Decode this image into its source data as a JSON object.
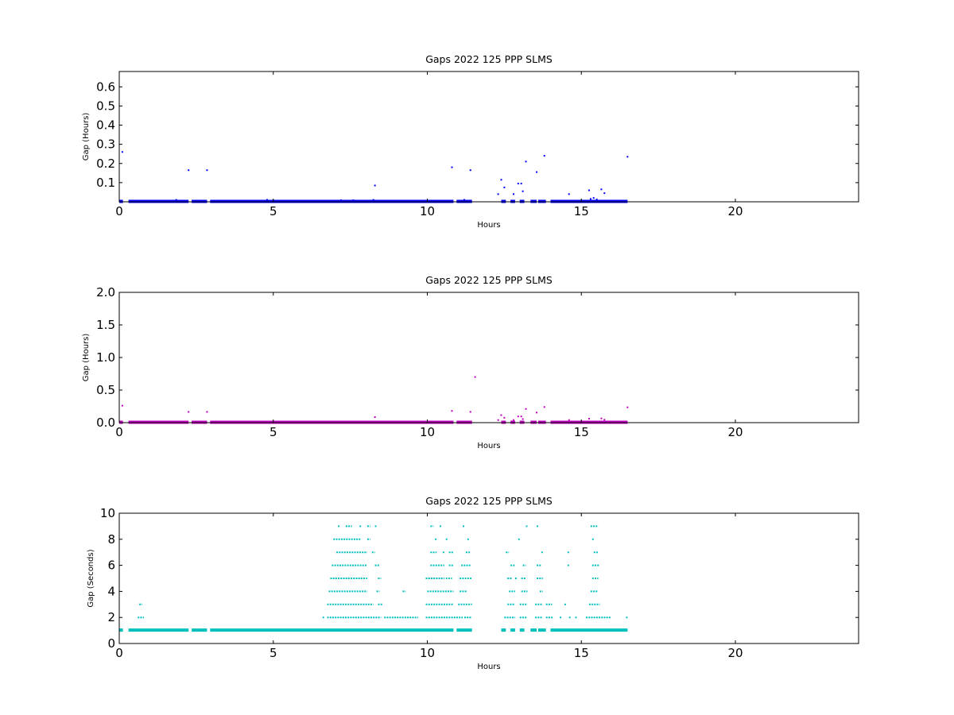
{
  "chart_data": [
    {
      "type": "scatter",
      "title": "Gaps 2022 125 PPP  SLMS",
      "xlabel": "Hours",
      "ylabel": "Gap (Hours)",
      "xlim": [
        0,
        24
      ],
      "ylim": [
        0,
        0.68
      ],
      "xticks": [
        0,
        5,
        10,
        15,
        20
      ],
      "yticks": [
        0.1,
        0.2,
        0.3,
        0.4,
        0.5,
        0.6
      ],
      "ytick_labels": [
        "0.1",
        "0.2",
        "0.3",
        "0.4",
        "0.5",
        "0.6"
      ],
      "color": "#0000ff",
      "baseline_segments": [
        [
          0.0,
          0.12,
          0.0
        ],
        [
          0.3,
          2.25,
          0.0
        ],
        [
          2.35,
          2.85,
          0.0
        ],
        [
          2.95,
          10.85,
          0.0
        ],
        [
          10.95,
          11.45,
          0.0
        ],
        [
          12.4,
          12.55,
          0.0
        ],
        [
          12.7,
          12.85,
          0.0
        ],
        [
          13.0,
          13.15,
          0.0
        ],
        [
          13.35,
          13.55,
          0.0
        ],
        [
          13.6,
          13.85,
          0.0
        ],
        [
          14.0,
          16.5,
          0.0
        ]
      ],
      "points": [
        [
          0.1,
          0.26
        ],
        [
          2.25,
          0.165
        ],
        [
          2.85,
          0.165
        ],
        [
          8.3,
          0.085
        ],
        [
          8.25,
          0.01
        ],
        [
          10.8,
          0.18
        ],
        [
          11.4,
          0.165
        ],
        [
          12.3,
          0.04
        ],
        [
          12.4,
          0.115
        ],
        [
          12.5,
          0.075
        ],
        [
          12.8,
          0.04
        ],
        [
          12.95,
          0.095
        ],
        [
          13.05,
          0.095
        ],
        [
          13.1,
          0.055
        ],
        [
          13.2,
          0.21
        ],
        [
          13.55,
          0.155
        ],
        [
          13.8,
          0.24
        ],
        [
          14.6,
          0.04
        ],
        [
          15.25,
          0.06
        ],
        [
          15.4,
          0.02
        ],
        [
          15.65,
          0.065
        ],
        [
          15.75,
          0.045
        ],
        [
          16.5,
          0.235
        ],
        [
          1.85,
          0.01
        ],
        [
          4.8,
          0.01
        ],
        [
          7.2,
          0.008
        ],
        [
          7.6,
          0.008
        ],
        [
          11.2,
          0.01
        ],
        [
          15.3,
          0.015
        ],
        [
          15.5,
          0.012
        ]
      ]
    },
    {
      "type": "scatter",
      "title": "Gaps 2022 125 PPP  SLMS",
      "xlabel": "Hours",
      "ylabel": "Gap (Hours)",
      "xlim": [
        0,
        24
      ],
      "ylim": [
        0,
        2.0
      ],
      "xticks": [
        0,
        5,
        10,
        15,
        20
      ],
      "yticks": [
        0.0,
        0.5,
        1.0,
        1.5,
        2.0
      ],
      "ytick_labels": [
        "0.0",
        "0.5",
        "1.0",
        "1.5",
        "2.0"
      ],
      "color": "#bf00bf",
      "baseline_segments": [
        [
          0.0,
          0.12,
          0.0
        ],
        [
          0.3,
          2.25,
          0.0
        ],
        [
          2.35,
          2.85,
          0.0
        ],
        [
          2.95,
          10.85,
          0.0
        ],
        [
          10.95,
          11.45,
          0.0
        ],
        [
          12.4,
          12.55,
          0.0
        ],
        [
          12.7,
          12.85,
          0.0
        ],
        [
          13.0,
          13.15,
          0.0
        ],
        [
          13.35,
          13.55,
          0.0
        ],
        [
          13.6,
          13.85,
          0.0
        ],
        [
          14.0,
          16.5,
          0.0
        ]
      ],
      "points": [
        [
          0.1,
          0.26
        ],
        [
          2.25,
          0.165
        ],
        [
          2.85,
          0.165
        ],
        [
          8.3,
          0.085
        ],
        [
          10.8,
          0.18
        ],
        [
          11.4,
          0.165
        ],
        [
          11.55,
          0.7
        ],
        [
          12.3,
          0.04
        ],
        [
          12.4,
          0.115
        ],
        [
          12.5,
          0.075
        ],
        [
          12.8,
          0.04
        ],
        [
          12.95,
          0.095
        ],
        [
          13.05,
          0.095
        ],
        [
          13.1,
          0.055
        ],
        [
          13.2,
          0.21
        ],
        [
          13.55,
          0.155
        ],
        [
          13.8,
          0.24
        ],
        [
          14.6,
          0.04
        ],
        [
          15.25,
          0.06
        ],
        [
          15.65,
          0.065
        ],
        [
          15.75,
          0.045
        ],
        [
          16.5,
          0.235
        ]
      ]
    },
    {
      "type": "scatter",
      "title": "Gaps 2022 125 PPP  SLMS",
      "xlabel": "Hours",
      "ylabel": "Gap (Seconds)",
      "xlim": [
        0,
        24
      ],
      "ylim": [
        0,
        10
      ],
      "xticks": [
        0,
        5,
        10,
        15,
        20
      ],
      "yticks": [
        0,
        2,
        4,
        6,
        8,
        10
      ],
      "ytick_labels": [
        "0",
        "2",
        "4",
        "6",
        "8",
        "10"
      ],
      "color": "#00bfbf",
      "baseline_segments": [
        [
          0.0,
          0.12,
          1
        ],
        [
          0.3,
          2.25,
          1
        ],
        [
          2.35,
          2.85,
          1
        ],
        [
          2.95,
          10.85,
          1
        ],
        [
          10.95,
          11.45,
          1
        ],
        [
          12.4,
          12.55,
          1
        ],
        [
          12.7,
          12.85,
          1
        ],
        [
          13.0,
          13.15,
          1
        ],
        [
          13.35,
          13.55,
          1
        ],
        [
          13.6,
          13.85,
          1
        ],
        [
          14.0,
          16.5,
          1
        ]
      ],
      "level_segments": [
        [
          0.65,
          0.75,
          3
        ],
        [
          0.6,
          0.8,
          2
        ],
        [
          6.6,
          6.65,
          2
        ],
        [
          6.75,
          8.5,
          2
        ],
        [
          8.6,
          9.7,
          2
        ],
        [
          9.95,
          11.15,
          2
        ],
        [
          11.2,
          11.45,
          2
        ],
        [
          12.5,
          12.85,
          2
        ],
        [
          13.0,
          13.25,
          2
        ],
        [
          13.5,
          13.75,
          2
        ],
        [
          13.85,
          14.1,
          2
        ],
        [
          14.3,
          14.35,
          2
        ],
        [
          14.6,
          14.65,
          2
        ],
        [
          14.8,
          14.85,
          2
        ],
        [
          15.15,
          15.95,
          2
        ],
        [
          16.45,
          16.5,
          2
        ],
        [
          6.75,
          8.25,
          3
        ],
        [
          8.4,
          8.55,
          3
        ],
        [
          9.95,
          10.85,
          3
        ],
        [
          11.0,
          11.45,
          3
        ],
        [
          12.6,
          12.85,
          3
        ],
        [
          13.0,
          13.25,
          3
        ],
        [
          13.5,
          13.75,
          3
        ],
        [
          13.85,
          14.05,
          3
        ],
        [
          14.45,
          14.5,
          3
        ],
        [
          15.25,
          15.6,
          3
        ],
        [
          6.8,
          8.05,
          4
        ],
        [
          8.35,
          8.45,
          4
        ],
        [
          9.2,
          9.3,
          4
        ],
        [
          10.0,
          10.85,
          4
        ],
        [
          11.05,
          11.3,
          4
        ],
        [
          12.65,
          12.85,
          4
        ],
        [
          13.05,
          13.25,
          4
        ],
        [
          13.65,
          13.75,
          4
        ],
        [
          15.3,
          15.55,
          4
        ],
        [
          6.85,
          8.05,
          5
        ],
        [
          8.4,
          8.5,
          5
        ],
        [
          9.95,
          10.55,
          5
        ],
        [
          10.6,
          10.8,
          5
        ],
        [
          11.05,
          11.45,
          5
        ],
        [
          12.6,
          12.75,
          5
        ],
        [
          12.85,
          12.9,
          5
        ],
        [
          13.05,
          13.2,
          5
        ],
        [
          13.55,
          13.75,
          5
        ],
        [
          15.35,
          15.55,
          5
        ],
        [
          6.9,
          8.05,
          6
        ],
        [
          8.3,
          8.45,
          6
        ],
        [
          10.1,
          10.55,
          6
        ],
        [
          10.7,
          10.85,
          6
        ],
        [
          11.1,
          11.4,
          6
        ],
        [
          12.7,
          12.85,
          6
        ],
        [
          13.1,
          13.2,
          6
        ],
        [
          13.55,
          13.7,
          6
        ],
        [
          14.55,
          14.6,
          6
        ],
        [
          15.35,
          15.6,
          6
        ],
        [
          7.05,
          8.05,
          7
        ],
        [
          8.2,
          8.3,
          7
        ],
        [
          10.1,
          10.3,
          7
        ],
        [
          10.5,
          10.55,
          7
        ],
        [
          10.7,
          10.85,
          7
        ],
        [
          11.25,
          11.4,
          7
        ],
        [
          12.55,
          12.65,
          7
        ],
        [
          13.7,
          13.75,
          7
        ],
        [
          14.55,
          14.6,
          7
        ],
        [
          15.4,
          15.55,
          7
        ],
        [
          6.95,
          7.85,
          8
        ],
        [
          8.05,
          8.15,
          8
        ],
        [
          10.25,
          10.3,
          8
        ],
        [
          10.6,
          10.65,
          8
        ],
        [
          11.3,
          11.35,
          8
        ],
        [
          12.95,
          13.0,
          8
        ],
        [
          15.35,
          15.4,
          8
        ],
        [
          7.1,
          7.15,
          9
        ],
        [
          7.35,
          7.55,
          9
        ],
        [
          7.8,
          7.85,
          9
        ],
        [
          8.05,
          8.15,
          9
        ],
        [
          8.3,
          8.35,
          9
        ],
        [
          10.1,
          10.2,
          9
        ],
        [
          10.4,
          10.45,
          9
        ],
        [
          11.15,
          11.2,
          9
        ],
        [
          13.2,
          13.25,
          9
        ],
        [
          13.55,
          13.6,
          9
        ],
        [
          15.3,
          15.55,
          9
        ]
      ]
    }
  ]
}
